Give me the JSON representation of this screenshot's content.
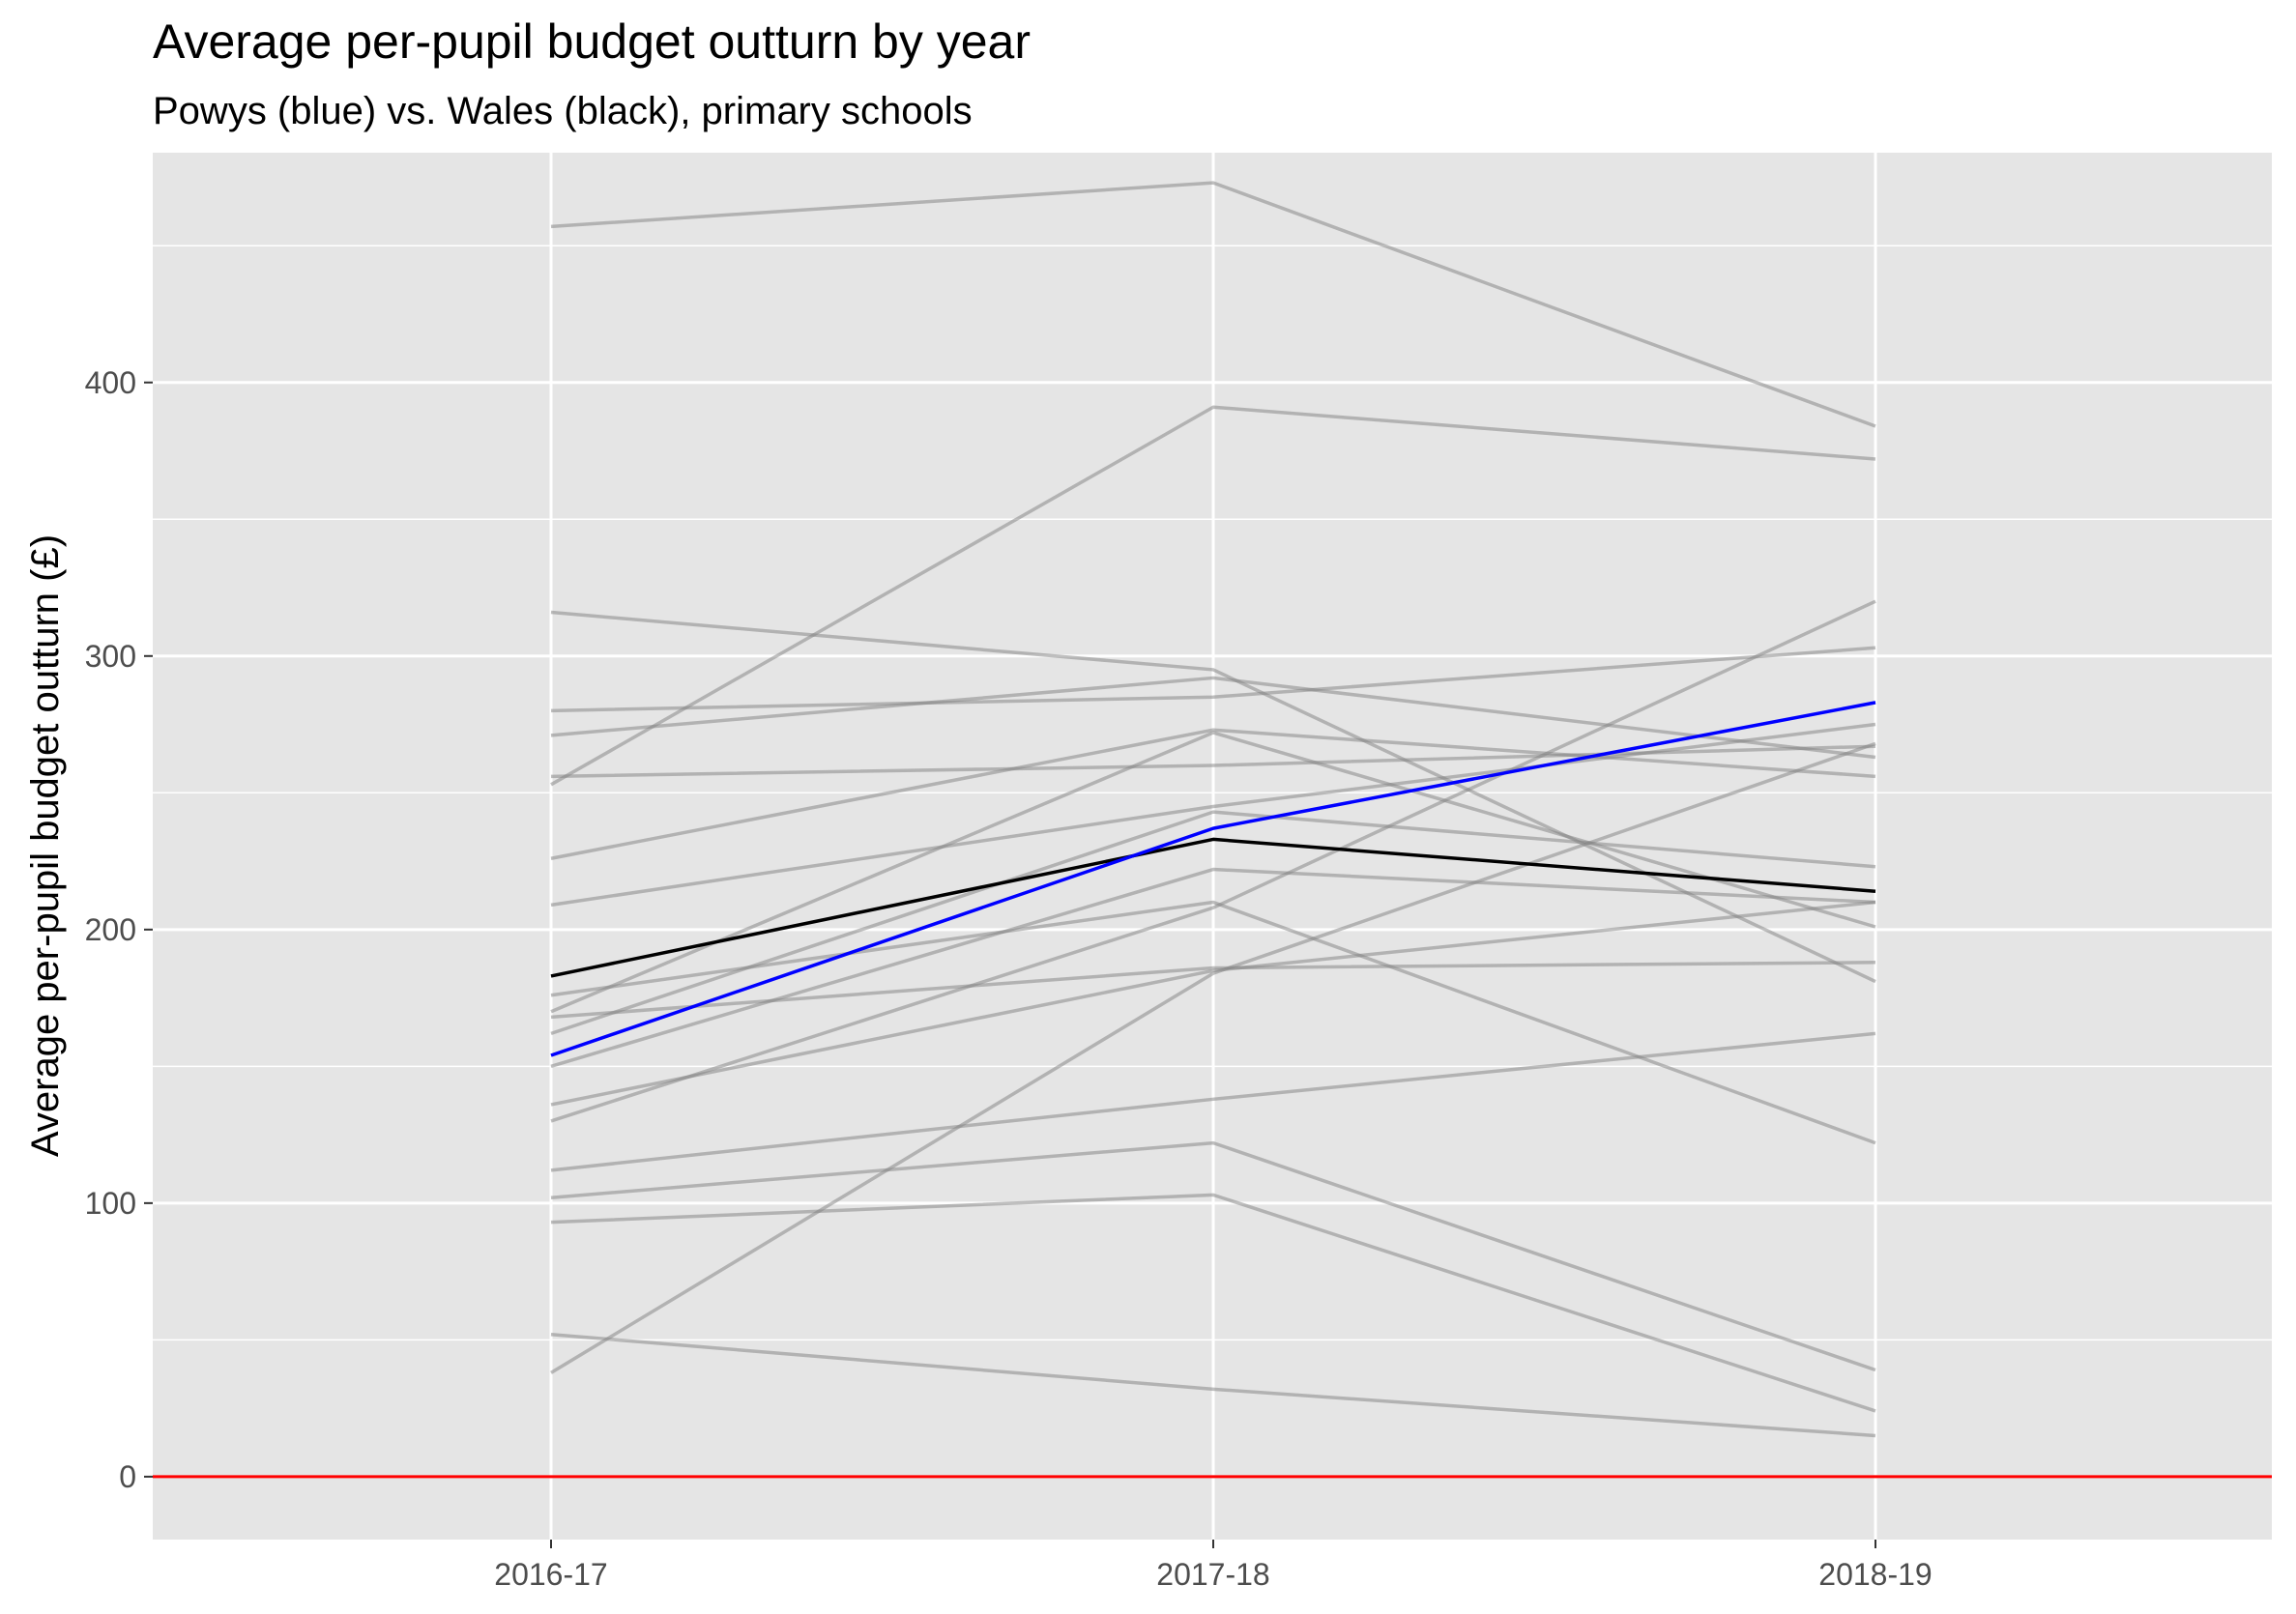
{
  "chart_data": {
    "type": "line",
    "title": "Average per-pupil budget outturn by year",
    "subtitle": "Powys (blue) vs. Wales (black), primary schools",
    "xlabel": "",
    "ylabel": "Average per-pupil budget outturn (£)",
    "categories": [
      "2016-17",
      "2017-18",
      "2018-19"
    ],
    "y_ticks": [
      0,
      100,
      200,
      300,
      400
    ],
    "ylim": [
      -23,
      484
    ],
    "grid": true,
    "reference_line": {
      "y": 0,
      "color": "#ff0000"
    },
    "background_series": [
      {
        "values": [
          457,
          473,
          384
        ]
      },
      {
        "values": [
          253,
          391,
          372
        ]
      },
      {
        "values": [
          316,
          295,
          181
        ]
      },
      {
        "values": [
          280,
          285,
          303
        ]
      },
      {
        "values": [
          271,
          292,
          263
        ]
      },
      {
        "values": [
          256,
          260,
          267
        ]
      },
      {
        "values": [
          226,
          273,
          256
        ]
      },
      {
        "values": [
          209,
          245,
          275
        ]
      },
      {
        "values": [
          170,
          272,
          201
        ]
      },
      {
        "values": [
          176,
          210,
          122
        ]
      },
      {
        "values": [
          162,
          243,
          223
        ]
      },
      {
        "values": [
          150,
          222,
          210
        ]
      },
      {
        "values": [
          168,
          186,
          188
        ]
      },
      {
        "values": [
          130,
          208,
          320
        ]
      },
      {
        "values": [
          136,
          185,
          210
        ]
      },
      {
        "values": [
          112,
          138,
          162
        ]
      },
      {
        "values": [
          102,
          122,
          39
        ]
      },
      {
        "values": [
          93,
          103,
          24
        ]
      },
      {
        "values": [
          52,
          32,
          15
        ]
      },
      {
        "values": [
          38,
          184,
          268
        ]
      }
    ],
    "highlight_series": [
      {
        "values": [
          183,
          233,
          214
        ],
        "color": "#000000"
      },
      {
        "values": [
          154,
          237,
          283
        ],
        "color": "#0000ff"
      }
    ],
    "colors": {
      "panel_background": "#e5e5e5",
      "grid": "#ffffff",
      "background_line": "#7f7f7f"
    }
  }
}
